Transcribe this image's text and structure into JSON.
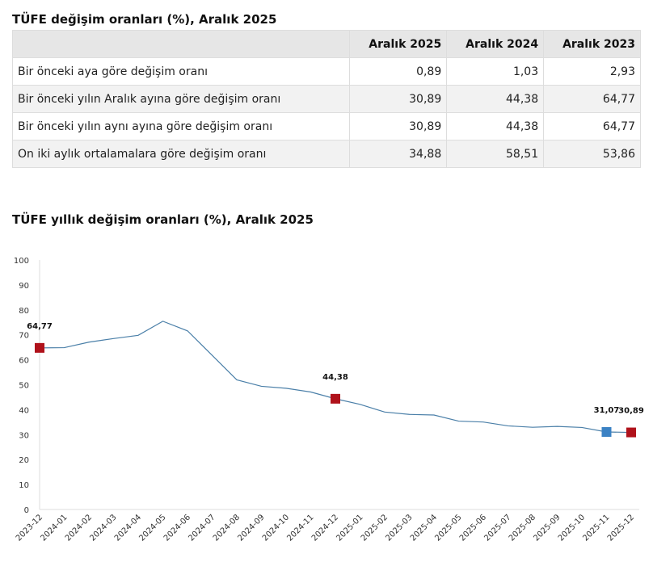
{
  "table": {
    "title": "TÜFE değişim oranları (%), Aralık 2025",
    "headers": [
      "",
      "Aralık 2025",
      "Aralık 2024",
      "Aralık 2023"
    ],
    "rows": [
      {
        "label": "Bir önceki aya göre değişim oranı",
        "values": [
          "0,89",
          "1,03",
          "2,93"
        ]
      },
      {
        "label": "Bir önceki yılın Aralık ayına göre değişim oranı",
        "values": [
          "30,89",
          "44,38",
          "64,77"
        ]
      },
      {
        "label": "Bir önceki yılın aynı ayına göre değişim oranı",
        "values": [
          "30,89",
          "44,38",
          "64,77"
        ]
      },
      {
        "label": "On iki aylık ortalamalara göre değişim oranı",
        "values": [
          "34,88",
          "58,51",
          "53,86"
        ]
      }
    ]
  },
  "chart_data": {
    "type": "line",
    "title": "TÜFE yıllık değişim oranları (%), Aralık 2025",
    "ylim": [
      0,
      100
    ],
    "yticks": [
      0,
      10,
      20,
      30,
      40,
      50,
      60,
      70,
      80,
      90,
      100
    ],
    "x": [
      "2023-12",
      "2024-01",
      "2024-02",
      "2024-03",
      "2024-04",
      "2024-05",
      "2024-06",
      "2024-07",
      "2024-08",
      "2024-09",
      "2024-10",
      "2024-11",
      "2024-12",
      "2025-01",
      "2025-02",
      "2025-03",
      "2025-04",
      "2025-05",
      "2025-06",
      "2025-07",
      "2025-08",
      "2025-09",
      "2025-10",
      "2025-11",
      "2025-12"
    ],
    "values": [
      64.77,
      64.86,
      67.07,
      68.5,
      69.8,
      75.45,
      71.6,
      61.78,
      51.97,
      49.38,
      48.58,
      47.09,
      44.38,
      42.12,
      39.05,
      38.1,
      37.86,
      35.41,
      35.05,
      33.52,
      32.95,
      33.29,
      32.87,
      31.07,
      30.89
    ],
    "line_color": "#4a7fa8",
    "grid": false,
    "highlights": [
      {
        "x": "2023-12",
        "label": "64,77",
        "color": "#b0121b"
      },
      {
        "x": "2024-12",
        "label": "44,38",
        "color": "#b0121b"
      },
      {
        "x": "2025-11",
        "label": "31,07",
        "color": "#3b82c4"
      },
      {
        "x": "2025-12",
        "label": "30,89",
        "color": "#b0121b"
      }
    ]
  }
}
